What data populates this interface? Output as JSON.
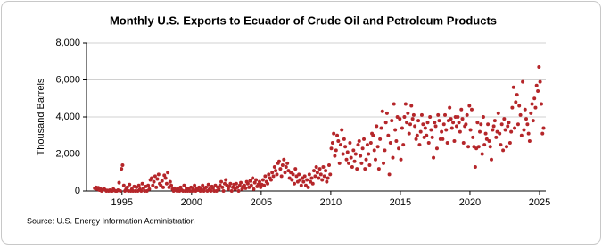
{
  "chart_data": {
    "type": "scatter",
    "title": "Monthly U.S. Exports to Ecuador of Crude Oil and Petroleum Products",
    "y_label": "Thousand Barrels",
    "source": "Source: U.S. Energy Information Administration",
    "color": "#b5262a",
    "grid": true,
    "xlim": [
      1992.45,
      2025.45
    ],
    "xticks": [
      1995,
      2000,
      2005,
      2010,
      2015,
      2020,
      2025
    ],
    "ylim": [
      0,
      8000
    ],
    "yticks": [
      0,
      {
        "value": 2000,
        "label": "2,000"
      },
      {
        "value": 4000,
        "label": "4,000"
      },
      {
        "value": 6000,
        "label": "6,000"
      },
      {
        "value": 8000,
        "label": "8,000"
      }
    ],
    "x": [
      1993.04,
      1993.13,
      1993.21,
      1993.29,
      1993.38,
      1993.46,
      1993.54,
      1993.63,
      1993.71,
      1993.79,
      1993.88,
      1993.96,
      1994.04,
      1994.13,
      1994.21,
      1994.29,
      1994.38,
      1994.46,
      1994.54,
      1994.63,
      1994.71,
      1994.79,
      1994.88,
      1994.96,
      1995.04,
      1995.13,
      1995.21,
      1995.29,
      1995.38,
      1995.46,
      1995.54,
      1995.63,
      1995.71,
      1995.79,
      1995.88,
      1995.96,
      1996.04,
      1996.13,
      1996.21,
      1996.29,
      1996.38,
      1996.46,
      1996.54,
      1996.63,
      1996.71,
      1996.79,
      1996.88,
      1996.96,
      1997.04,
      1997.13,
      1997.21,
      1997.29,
      1997.38,
      1997.46,
      1997.54,
      1997.63,
      1997.71,
      1997.79,
      1997.88,
      1997.96,
      1998.04,
      1998.13,
      1998.21,
      1998.29,
      1998.38,
      1998.46,
      1998.54,
      1998.63,
      1998.71,
      1998.79,
      1998.88,
      1998.96,
      1999.04,
      1999.13,
      1999.21,
      1999.29,
      1999.38,
      1999.46,
      1999.54,
      1999.63,
      1999.71,
      1999.79,
      1999.88,
      1999.96,
      2000.04,
      2000.13,
      2000.21,
      2000.29,
      2000.38,
      2000.46,
      2000.54,
      2000.63,
      2000.71,
      2000.79,
      2000.88,
      2000.96,
      2001.04,
      2001.13,
      2001.21,
      2001.29,
      2001.38,
      2001.46,
      2001.54,
      2001.63,
      2001.71,
      2001.79,
      2001.88,
      2001.96,
      2002.04,
      2002.13,
      2002.21,
      2002.29,
      2002.38,
      2002.46,
      2002.54,
      2002.63,
      2002.71,
      2002.79,
      2002.88,
      2002.96,
      2003.04,
      2003.13,
      2003.21,
      2003.29,
      2003.38,
      2003.46,
      2003.54,
      2003.63,
      2003.71,
      2003.79,
      2003.88,
      2003.96,
      2004.04,
      2004.13,
      2004.21,
      2004.29,
      2004.38,
      2004.46,
      2004.54,
      2004.63,
      2004.71,
      2004.79,
      2004.88,
      2004.96,
      2005.04,
      2005.13,
      2005.21,
      2005.29,
      2005.38,
      2005.46,
      2005.54,
      2005.63,
      2005.71,
      2005.79,
      2005.88,
      2005.96,
      2006.04,
      2006.13,
      2006.21,
      2006.29,
      2006.38,
      2006.46,
      2006.54,
      2006.63,
      2006.71,
      2006.79,
      2006.88,
      2006.96,
      2007.04,
      2007.13,
      2007.21,
      2007.29,
      2007.38,
      2007.46,
      2007.54,
      2007.63,
      2007.71,
      2007.79,
      2007.88,
      2007.96,
      2008.04,
      2008.13,
      2008.21,
      2008.29,
      2008.38,
      2008.46,
      2008.54,
      2008.63,
      2008.71,
      2008.79,
      2008.88,
      2008.96,
      2009.04,
      2009.13,
      2009.21,
      2009.29,
      2009.38,
      2009.46,
      2009.54,
      2009.63,
      2009.71,
      2009.79,
      2009.88,
      2009.96,
      2010.04,
      2010.13,
      2010.21,
      2010.29,
      2010.38,
      2010.46,
      2010.54,
      2010.63,
      2010.71,
      2010.79,
      2010.88,
      2010.96,
      2011.04,
      2011.13,
      2011.21,
      2011.29,
      2011.38,
      2011.46,
      2011.54,
      2011.63,
      2011.71,
      2011.79,
      2011.88,
      2011.96,
      2012.04,
      2012.13,
      2012.21,
      2012.29,
      2012.38,
      2012.46,
      2012.54,
      2012.63,
      2012.71,
      2012.79,
      2012.88,
      2012.96,
      2013.04,
      2013.13,
      2013.21,
      2013.29,
      2013.38,
      2013.46,
      2013.54,
      2013.63,
      2013.71,
      2013.79,
      2013.88,
      2013.96,
      2014.04,
      2014.13,
      2014.21,
      2014.29,
      2014.38,
      2014.46,
      2014.54,
      2014.63,
      2014.71,
      2014.79,
      2014.88,
      2014.96,
      2015.04,
      2015.13,
      2015.21,
      2015.29,
      2015.38,
      2015.46,
      2015.54,
      2015.63,
      2015.71,
      2015.79,
      2015.88,
      2015.96,
      2016.04,
      2016.13,
      2016.21,
      2016.29,
      2016.38,
      2016.46,
      2016.54,
      2016.63,
      2016.71,
      2016.79,
      2016.88,
      2016.96,
      2017.04,
      2017.13,
      2017.21,
      2017.29,
      2017.38,
      2017.46,
      2017.54,
      2017.63,
      2017.71,
      2017.79,
      2017.88,
      2017.96,
      2018.04,
      2018.13,
      2018.21,
      2018.29,
      2018.38,
      2018.46,
      2018.54,
      2018.63,
      2018.71,
      2018.79,
      2018.88,
      2018.96,
      2019.04,
      2019.13,
      2019.21,
      2019.29,
      2019.38,
      2019.46,
      2019.54,
      2019.63,
      2019.71,
      2019.79,
      2019.88,
      2019.96,
      2020.04,
      2020.13,
      2020.21,
      2020.29,
      2020.38,
      2020.46,
      2020.54,
      2020.63,
      2020.71,
      2020.79,
      2020.88,
      2020.96,
      2021.04,
      2021.13,
      2021.21,
      2021.29,
      2021.38,
      2021.46,
      2021.54,
      2021.63,
      2021.71,
      2021.79,
      2021.88,
      2021.96,
      2022.04,
      2022.13,
      2022.21,
      2022.29,
      2022.38,
      2022.46,
      2022.54,
      2022.63,
      2022.71,
      2022.79,
      2022.88,
      2022.96,
      2023.04,
      2023.13,
      2023.21,
      2023.29,
      2023.38,
      2023.46,
      2023.54,
      2023.63,
      2023.71,
      2023.79,
      2023.88,
      2023.96,
      2024.04,
      2024.13,
      2024.21,
      2024.29,
      2024.38,
      2024.46,
      2024.54,
      2024.63,
      2024.71,
      2024.79,
      2024.88,
      2024.96,
      2025.04,
      2025.13,
      2025.21,
      2025.29
    ],
    "values": [
      150,
      200,
      100,
      180,
      50,
      100,
      0,
      80,
      120,
      60,
      0,
      30,
      0,
      50,
      0,
      0,
      100,
      30,
      0,
      0,
      50,
      450,
      0,
      1200,
      1400,
      300,
      0,
      100,
      200,
      0,
      350,
      0,
      100,
      0,
      250,
      0,
      200,
      0,
      300,
      100,
      0,
      400,
      150,
      0,
      250,
      0,
      300,
      100,
      600,
      700,
      300,
      500,
      800,
      200,
      650,
      900,
      400,
      300,
      550,
      200,
      850,
      700,
      400,
      1000,
      200,
      500,
      300,
      100,
      0,
      150,
      50,
      0,
      100,
      0,
      200,
      50,
      0,
      300,
      0,
      150,
      0,
      100,
      0,
      200,
      0,
      100,
      300,
      0,
      150,
      50,
      200,
      0,
      100,
      300,
      0,
      150,
      200,
      0,
      350,
      100,
      0,
      250,
      150,
      0,
      300,
      0,
      200,
      100,
      300,
      500,
      200,
      0,
      400,
      600,
      300,
      100,
      250,
      400,
      0,
      200,
      350,
      100,
      400,
      200,
      0,
      300,
      450,
      100,
      250,
      300,
      150,
      500,
      400,
      200,
      550,
      300,
      700,
      100,
      450,
      600,
      250,
      350,
      500,
      200,
      350,
      600,
      300,
      800,
      500,
      400,
      900,
      700,
      600,
      1000,
      800,
      1300,
      1100,
      900,
      1500,
      1600,
      1200,
      800,
      1400,
      1700,
      1000,
      1300,
      1500,
      1100,
      700,
      1000,
      600,
      900,
      400,
      1200,
      800,
      500,
      900,
      600,
      300,
      700,
      500,
      800,
      300,
      600,
      200,
      900,
      500,
      700,
      400,
      1100,
      800,
      1300,
      1000,
      700,
      1200,
      900,
      600,
      1300,
      800,
      1100,
      500,
      700,
      1400,
      900,
      2300,
      2600,
      3100,
      1900,
      2200,
      3000,
      2700,
      1500,
      2500,
      3300,
      2000,
      2800,
      2400,
      1700,
      2100,
      1500,
      2600,
      1800,
      1300,
      2200,
      1600,
      2000,
      1200,
      2500,
      2700,
      1900,
      1500,
      2300,
      2800,
      1200,
      1700,
      2500,
      2000,
      1400,
      2600,
      3100,
      3000,
      2200,
      1700,
      3500,
      2400,
      1200,
      2800,
      3400,
      4300,
      1500,
      2200,
      3700,
      4200,
      3000,
      900,
      2600,
      3800,
      1800,
      4700,
      3300,
      2700,
      4000,
      2300,
      3900,
      1700,
      3400,
      2500,
      4000,
      4700,
      3700,
      4200,
      3100,
      3600,
      4600,
      3900,
      4100,
      3500,
      2800,
      3000,
      3800,
      2500,
      3200,
      4100,
      3600,
      2900,
      3400,
      3000,
      3700,
      2600,
      4000,
      3300,
      2900,
      1800,
      3700,
      3500,
      2300,
      4100,
      3800,
      2800,
      3200,
      2800,
      3600,
      4100,
      3300,
      2600,
      3800,
      4500,
      3900,
      3400,
      3700,
      2700,
      4000,
      3500,
      4000,
      3700,
      3200,
      4400,
      3900,
      2600,
      3500,
      3600,
      4100,
      2400,
      4600,
      3300,
      4400,
      2900,
      2400,
      1300,
      2300,
      3700,
      2400,
      3200,
      3600,
      2000,
      4000,
      2500,
      3100,
      2800,
      3600,
      2700,
      2400,
      1700,
      3300,
      3500,
      3800,
      2900,
      3200,
      4200,
      3100,
      2500,
      3600,
      2200,
      3900,
      3300,
      2400,
      3500,
      3700,
      2600,
      3200,
      4500,
      5600,
      3400,
      4800,
      5200,
      3600,
      4600,
      4100,
      3000,
      5900,
      3300,
      4400,
      3900,
      3600,
      3100,
      2700,
      4200,
      4700,
      3800,
      5000,
      4500,
      5700,
      5400,
      6700,
      5900,
      4700,
      3100,
      3400
    ]
  }
}
